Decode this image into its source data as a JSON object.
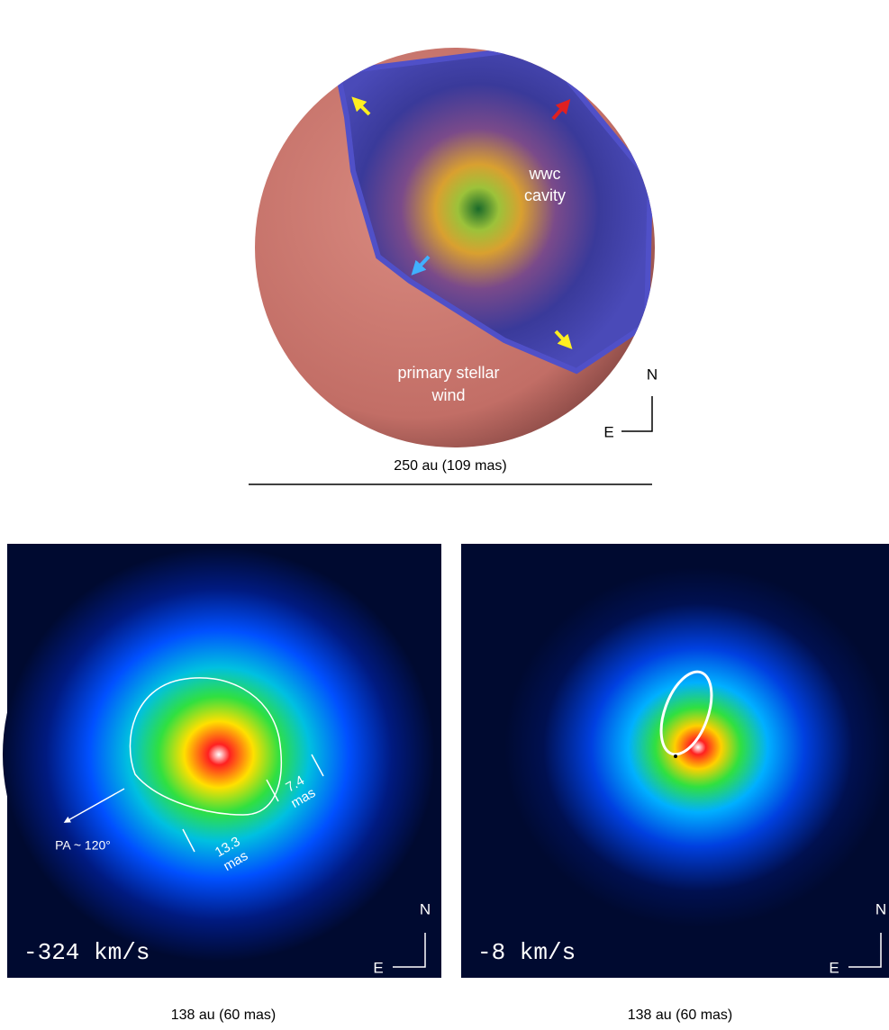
{
  "top_panel": {
    "cavity_label": [
      "wwc",
      "cavity"
    ],
    "wind_label": [
      "primary stellar",
      "wind"
    ],
    "compass": {
      "north": "N",
      "east": "E"
    },
    "scale_bar": "250 au (109 mas)"
  },
  "left_panel": {
    "velocity": "-324 km/s",
    "position_angle": "PA ~ 120°",
    "major_axis": [
      "13.3",
      "mas"
    ],
    "minor_axis": [
      "7.4",
      "mas"
    ],
    "compass": {
      "north": "N",
      "east": "E"
    },
    "scale_bar": "138 au (60 mas)"
  },
  "right_panel": {
    "velocity": "-8 km/s",
    "compass": {
      "north": "N",
      "east": "E"
    },
    "scale_bar": "138 au (60 mas)"
  }
}
